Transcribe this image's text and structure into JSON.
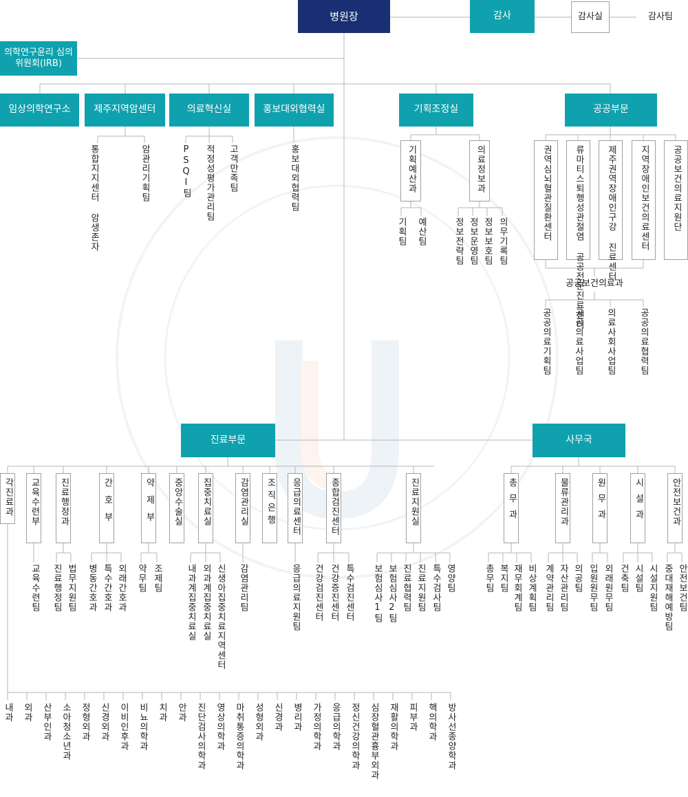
{
  "top": {
    "director": "병원장",
    "audit": "감사",
    "audit_office": "감사실",
    "audit_team": "감사팀",
    "irb": "의학연구윤리 심의위원회(IRB)"
  },
  "divisions": [
    "임상의학연구소",
    "제주지역암센터",
    "의료혁신실",
    "홍보대외협력실",
    "기획조정실",
    "공공부문"
  ],
  "cancer_center_units": [
    "통합지지센터 암생존자",
    "암관리기획팀"
  ],
  "innovation_units": [
    "PSQI팀",
    "적정성평가관리팀",
    "고객만족팀"
  ],
  "pr_units": [
    "홍보대외협력팀"
  ],
  "planning": {
    "depts": [
      "기획예산과",
      "의료정보과"
    ],
    "budget_teams": [
      "기획팀",
      "예산팀"
    ],
    "info_teams": [
      "정보전략팀",
      "정보운영팀",
      "정보보호팀",
      "의무기록팀"
    ]
  },
  "public": {
    "centers": [
      "권역심뇌혈관질환센터",
      "류마티스퇴행성관절염 공공전문진료센터",
      "제주권역장애인구강 진료센터",
      "지역장애인보건의료센터",
      "공공보건의료지원단"
    ],
    "dept": "공공보건의료과",
    "teams": [
      "공공의료기획팀",
      "공공의료사업팀",
      "의료사회사업팀",
      "공공의료협력팀"
    ]
  },
  "medical": {
    "title": "진료부문",
    "depts": [
      "각진료과",
      "교육수련부",
      "진료행정과",
      "간호부",
      "약제부",
      "중앙수술실",
      "집중치료실",
      "감염관리실",
      "조직은행",
      "응급의료센터",
      "종합검진센터",
      "진료지원실"
    ],
    "edu_teams": [
      "교육수련팀"
    ],
    "admin_teams": [
      "진료행정팀",
      "법무지원팀"
    ],
    "nursing_teams": [
      "병동간호과",
      "특수간호과",
      "외래간호과"
    ],
    "pharmacy_teams": [
      "약무팀",
      "조제팀"
    ],
    "icu_teams": [
      "내과계집중치료실",
      "외과계집중치료실",
      "신생아집중치료지역센터"
    ],
    "infection_teams": [
      "감염관리팀"
    ],
    "er_teams": [
      "응급의료지원팀"
    ],
    "checkup_teams": [
      "건강검진센터",
      "건강증진센터",
      "특수검진센터"
    ],
    "support_teams": [
      "보험심사1팀",
      "보험심사2팀",
      "진료협력팀",
      "진료지원팀",
      "특수검사팀",
      "영양팀"
    ],
    "clinical_depts": [
      "내과",
      "외과",
      "산부인과",
      "소아청소년과",
      "정형외과",
      "신경외과",
      "이비인후과",
      "비뇨의학과",
      "치과",
      "안과",
      "진단검사의학과",
      "영상의학과",
      "마취통증의학과",
      "성형외과",
      "신경과",
      "병리과",
      "가정의학과",
      "응급의학과",
      "정신건강의학과",
      "심장혈관흉부외과",
      "재활의학과",
      "피부과",
      "핵의학과",
      "방사선종양학과"
    ]
  },
  "admin_office": {
    "title": "사무국",
    "depts": [
      "총무과",
      "물류관리과",
      "원무과",
      "시설과",
      "안전보건과"
    ],
    "general_teams": [
      "총무팀",
      "복지팀",
      "재무회계팀",
      "비상계획팀"
    ],
    "logistics_teams": [
      "계약관리팀",
      "자산관리팀",
      "의공팀"
    ],
    "patient_teams": [
      "입원원무팀",
      "외래원무팀"
    ],
    "facility_teams": [
      "건축팀",
      "시설팀",
      "시설지원팀"
    ],
    "safety_teams": [
      "중대재해예방팀",
      "안전보건팀"
    ]
  },
  "colors": {
    "navy": "#1a2f73",
    "teal": "#0fa1ad",
    "line": "#b5b5b5",
    "border": "#9aa0a6"
  }
}
